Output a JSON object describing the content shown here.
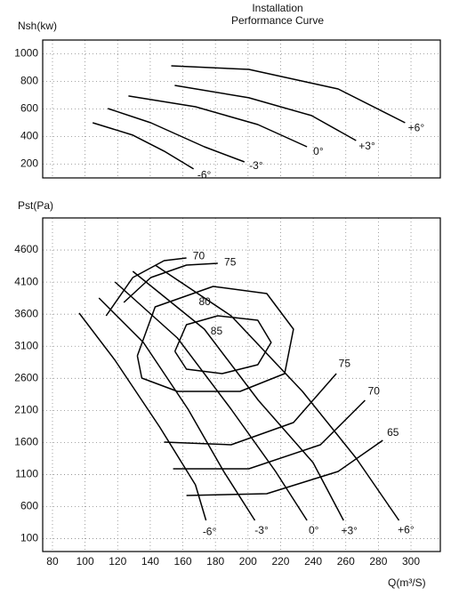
{
  "chart_data": [
    {
      "type": "line",
      "title": [
        "Installation",
        "Performance Curve"
      ],
      "ylabel": "Nsh(kw)",
      "xlim": [
        74,
        318
      ],
      "ylim": [
        100,
        1100
      ],
      "yticks": [
        200,
        400,
        600,
        800,
        1000
      ],
      "grid": true,
      "series": [
        {
          "name": "-6°",
          "color": "#000000",
          "x": [
            104.7,
            129.3,
            148.5,
            166.6
          ],
          "values": [
            500,
            410,
            294,
            165
          ]
        },
        {
          "name": "-3°",
          "color": "#000000",
          "x": [
            114,
            140.3,
            173.2,
            197.8
          ],
          "values": [
            603,
            500,
            326,
            216
          ]
        },
        {
          "name": "0°",
          "color": "#000000",
          "x": [
            126.6,
            167.7,
            206,
            236.2
          ],
          "values": [
            694,
            616,
            487,
            326
          ]
        },
        {
          "name": "+3°",
          "color": "#000000",
          "x": [
            155,
            200.5,
            238.9,
            266.3
          ],
          "values": [
            771,
            681,
            552,
            371
          ]
        },
        {
          "name": "+6°",
          "color": "#000000",
          "x": [
            152.9,
            200.5,
            255.3,
            296.4
          ],
          "values": [
            913,
            887,
            745,
            500
          ]
        }
      ]
    },
    {
      "type": "line",
      "ylabel": "Pst(Pa)",
      "xlabel": "Q(m³/S)",
      "xlim": [
        74,
        318
      ],
      "ylim": [
        -100,
        5100
      ],
      "xticks": [
        80,
        100,
        120,
        140,
        160,
        180,
        200,
        220,
        240,
        260,
        280,
        300
      ],
      "yticks": [
        100,
        600,
        1100,
        1600,
        2100,
        2600,
        3100,
        3600,
        4100,
        4600
      ],
      "grid": true,
      "series": [
        {
          "name": "-6°",
          "color": "#000000",
          "x": [
            96.4,
            118.4,
            145.8,
            167.7,
            174.2
          ],
          "values": [
            3616,
            2881,
            1841,
            940,
            385
          ]
        },
        {
          "name": "-3°",
          "color": "#000000",
          "x": [
            108.5,
            135.8,
            163.2,
            185.1,
            204.2
          ],
          "values": [
            3852,
            3159,
            2119,
            1148,
            385
          ]
        },
        {
          "name": "0°",
          "color": "#000000",
          "x": [
            118.4,
            156.7,
            189.6,
            216.9,
            236.2
          ],
          "values": [
            4102,
            3228,
            2119,
            1148,
            385
          ]
        },
        {
          "name": "+3°",
          "color": "#000000",
          "x": [
            129.3,
            173.2,
            206.3,
            239.9,
            258.6
          ],
          "values": [
            4268,
            3367,
            2257,
            1287,
            385
          ]
        },
        {
          "name": "+6°",
          "color": "#000000",
          "x": [
            143,
            189.6,
            233.4,
            266.3,
            292.6
          ],
          "values": [
            4365,
            3575,
            2396,
            1356,
            385
          ]
        },
        {
          "name": "85",
          "color": "#000000",
          "x": [
            155.1,
            162.2,
            181.4,
            206.0,
            214.2,
            206.0,
            184.1,
            162.2,
            155.1
          ],
          "values": [
            3020,
            3436,
            3575,
            3505,
            3159,
            2812,
            2673,
            2743,
            3020
          ]
        },
        {
          "name": "80",
          "color": "#000000",
          "x": [
            132.1,
            143.0,
            178.6,
            211.5,
            227.9,
            222.5,
            195.1,
            156.7,
            134.8,
            132.1
          ],
          "values": [
            2951,
            3713,
            4032,
            3921,
            3367,
            2673,
            2396,
            2396,
            2604,
            2951
          ]
        },
        {
          "name": "75",
          "color": "#000000",
          "x": [
            123.8,
            140.3,
            162.2,
            181.4,
            null,
            148.5,
            189.6,
            227.9,
            254.2
          ],
          "values": [
            3783,
            4171,
            4365,
            4393,
            null,
            1606,
            1564,
            1911,
            2673
          ]
        },
        {
          "name": "70",
          "color": "#000000",
          "x": [
            112.9,
            129.3,
            148.5,
            162.2,
            null,
            154,
            200.5,
            244.4,
            271.8
          ],
          "values": [
            3575,
            4171,
            4434,
            4476,
            null,
            1190,
            1190,
            1564,
            2257
          ]
        },
        {
          "name": "65",
          "color": "#000000",
          "x": [
            162.2,
            211.5,
            255.3,
            282.7
          ],
          "values": [
            774,
            801,
            1148,
            1633
          ]
        }
      ]
    }
  ]
}
